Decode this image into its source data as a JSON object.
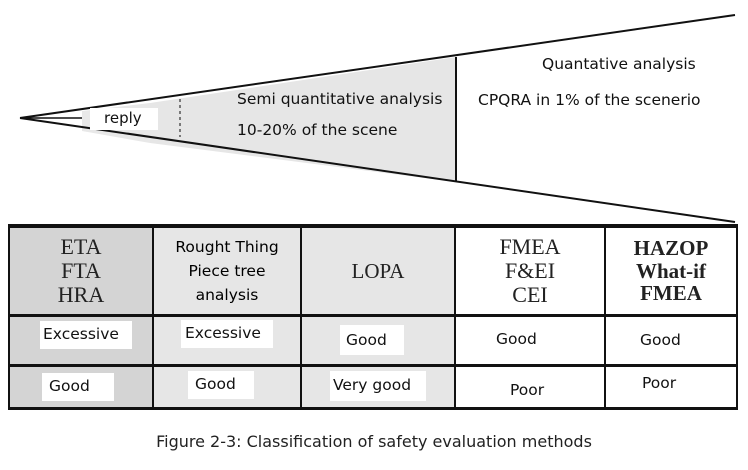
{
  "funnel": {
    "stage1_label": "reply",
    "stage2_label": "Semi quantitative analysis",
    "stage2_sub": "10-20% of the scene",
    "stage3_label": "Quantative analysis",
    "stage3_sub": "CPQRA in 1% of the scenerio"
  },
  "columns": [
    {
      "header": [
        "ETA",
        "FTA",
        "HRA"
      ],
      "row1": "Excessive",
      "row2": "Good",
      "bg": "#d4d4d4"
    },
    {
      "header": [
        "Rought Thing",
        "Piece tree",
        "analysis"
      ],
      "row1": "Excessive",
      "row2": "Good",
      "bg": "#e6e6e6"
    },
    {
      "header": [
        "LOPA"
      ],
      "row1": "Good",
      "row2": "Very good",
      "bg": "#e6e6e6"
    },
    {
      "header": [
        "FMEA",
        "F&EI",
        "CEI"
      ],
      "row1": "Good",
      "row2": "Poor",
      "bg": "#ffffff"
    },
    {
      "header": [
        "HAZOP",
        "What-if",
        "FMEA"
      ],
      "row1": "Good",
      "row2": "Poor",
      "bg": "#ffffff"
    }
  ],
  "caption": "Figure 2-3: Classification of safety evaluation methods",
  "colors": {
    "light_gray": "#e6e6e6",
    "mid_gray": "#d4d4d4",
    "line": "#111111"
  }
}
